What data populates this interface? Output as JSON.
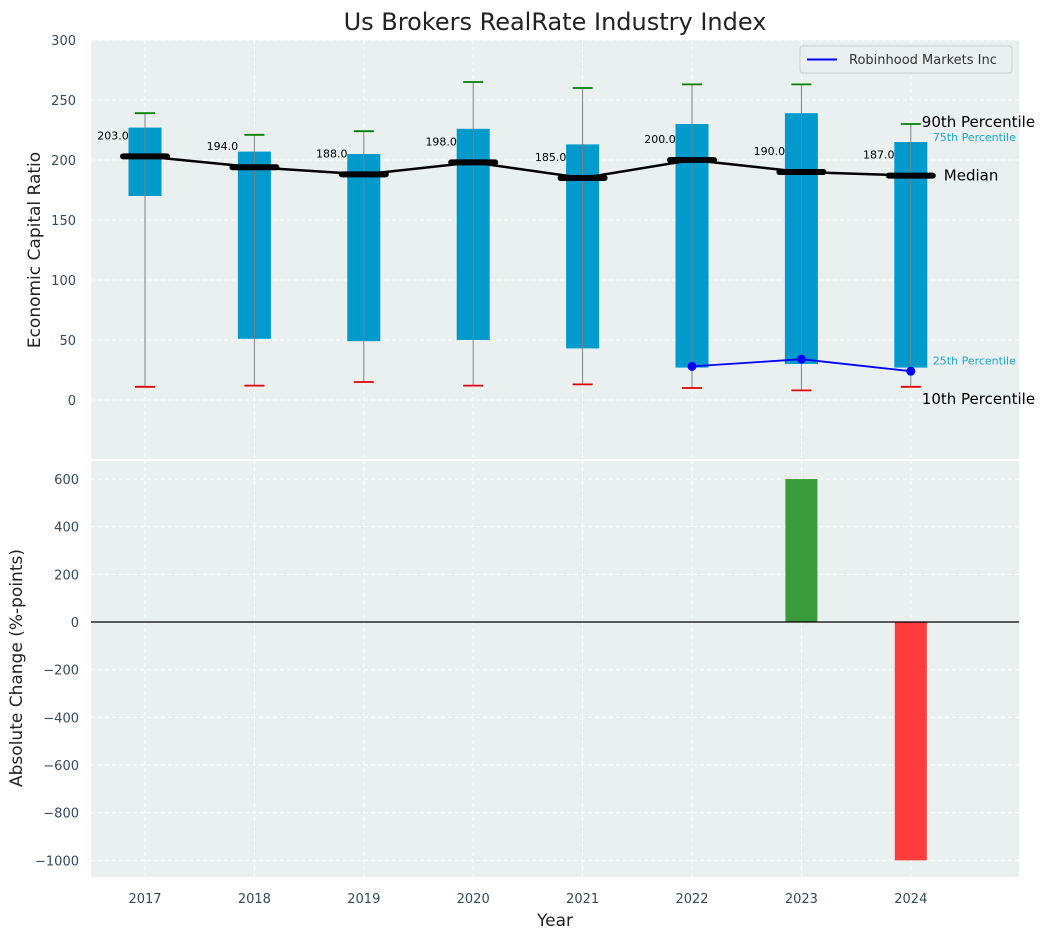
{
  "colors": {
    "background": "#eaeff0",
    "box": "#009acd",
    "median": "#000000",
    "whisker_high": "#008000",
    "whisker_low": "#e00000",
    "company": "#0000ff",
    "positive_bar": "#3a9b3a",
    "negative_bar": "#ff3b3b",
    "label_75_25": "#1aa7c8"
  },
  "chart_data": [
    {
      "type": "box",
      "title": "Us Brokers RealRate Industry Index",
      "ylabel": "Economic Capital Ratio",
      "ylim": [
        -50,
        300
      ],
      "yticks": [
        0,
        50,
        100,
        150,
        200,
        250,
        300
      ],
      "categories": [
        "2017",
        "2018",
        "2019",
        "2020",
        "2021",
        "2022",
        "2023",
        "2024"
      ],
      "p10": [
        11,
        12,
        15,
        12,
        13,
        10,
        8,
        11
      ],
      "p25": [
        170,
        51,
        49,
        50,
        43,
        27,
        30,
        27
      ],
      "median": [
        203,
        194,
        188,
        198,
        185,
        200,
        190,
        187
      ],
      "p75": [
        227,
        207,
        205,
        226,
        213,
        230,
        239,
        215
      ],
      "p90": [
        239,
        221,
        224,
        265,
        260,
        263,
        263,
        230
      ],
      "median_labels": [
        "203.0",
        "194.0",
        "188.0",
        "198.0",
        "185.0",
        "200.0",
        "190.0",
        "187.0"
      ],
      "series": [
        {
          "name": "Robinhood Markets Inc",
          "x": [
            "2022",
            "2023",
            "2024"
          ],
          "values": [
            28,
            34,
            24
          ]
        }
      ],
      "annotations": {
        "p90": "90th Percentile",
        "p75": "75th Percentile",
        "median": "Median",
        "p25": "25th Percentile",
        "p10": "10th Percentile"
      },
      "legend_position": "top-right",
      "grid": true
    },
    {
      "type": "bar",
      "xlabel": "Year",
      "ylabel": "Absolute Change (%-points)",
      "ylim": [
        -1070,
        680
      ],
      "yticks": [
        -1000,
        -800,
        -600,
        -400,
        -200,
        0,
        200,
        400,
        600
      ],
      "ytick_labels": [
        "−1000",
        "−800",
        "−600",
        "−400",
        "−200",
        "0",
        "200",
        "400",
        "600"
      ],
      "categories": [
        "2017",
        "2018",
        "2019",
        "2020",
        "2021",
        "2022",
        "2023",
        "2024"
      ],
      "values": [
        0,
        0,
        0,
        0,
        0,
        0,
        600,
        -1000
      ],
      "grid": true
    }
  ]
}
